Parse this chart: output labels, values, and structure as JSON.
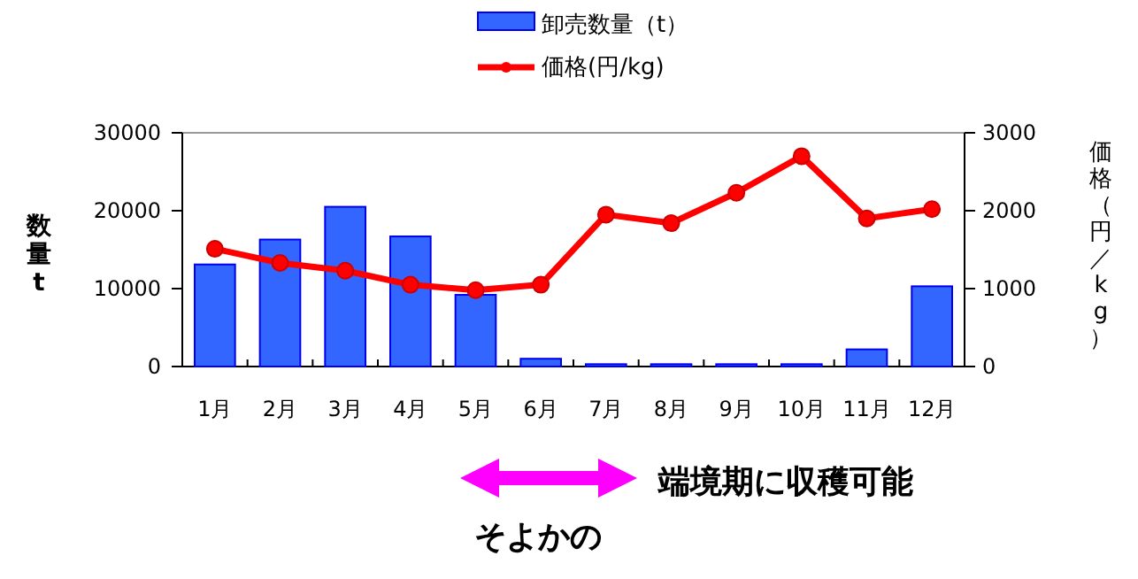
{
  "chart_data": {
    "type": "bar",
    "ylabel": "数量t",
    "y2label": "価格（円／kg）",
    "categories": [
      "1月",
      "2月",
      "3月",
      "4月",
      "5月",
      "6月",
      "7月",
      "8月",
      "9月",
      "10月",
      "11月",
      "12月"
    ],
    "series": [
      {
        "name": "卸売数量（t）",
        "color": "#3366ff",
        "values": [
          13100,
          16300,
          20500,
          16700,
          9200,
          1000,
          300,
          300,
          300,
          300,
          2200,
          10300
        ]
      },
      {
        "name": "価格(円/kg)",
        "type": "line",
        "axis": "y2",
        "color": "#ff0000",
        "marker": "circle",
        "values": [
          1510,
          1330,
          1230,
          1050,
          980,
          1050,
          1950,
          1840,
          2230,
          2700,
          1900,
          2020
        ]
      }
    ],
    "ylim": [
      0,
      30000
    ],
    "yticks": [
      0,
      10000,
      20000,
      30000
    ],
    "y2lim": [
      0,
      3000
    ],
    "y2ticks": [
      0,
      1000,
      2000,
      3000
    ],
    "legend": "top",
    "grid": false,
    "annotations": [
      "端境期に収穫可能",
      "そよかの"
    ]
  }
}
